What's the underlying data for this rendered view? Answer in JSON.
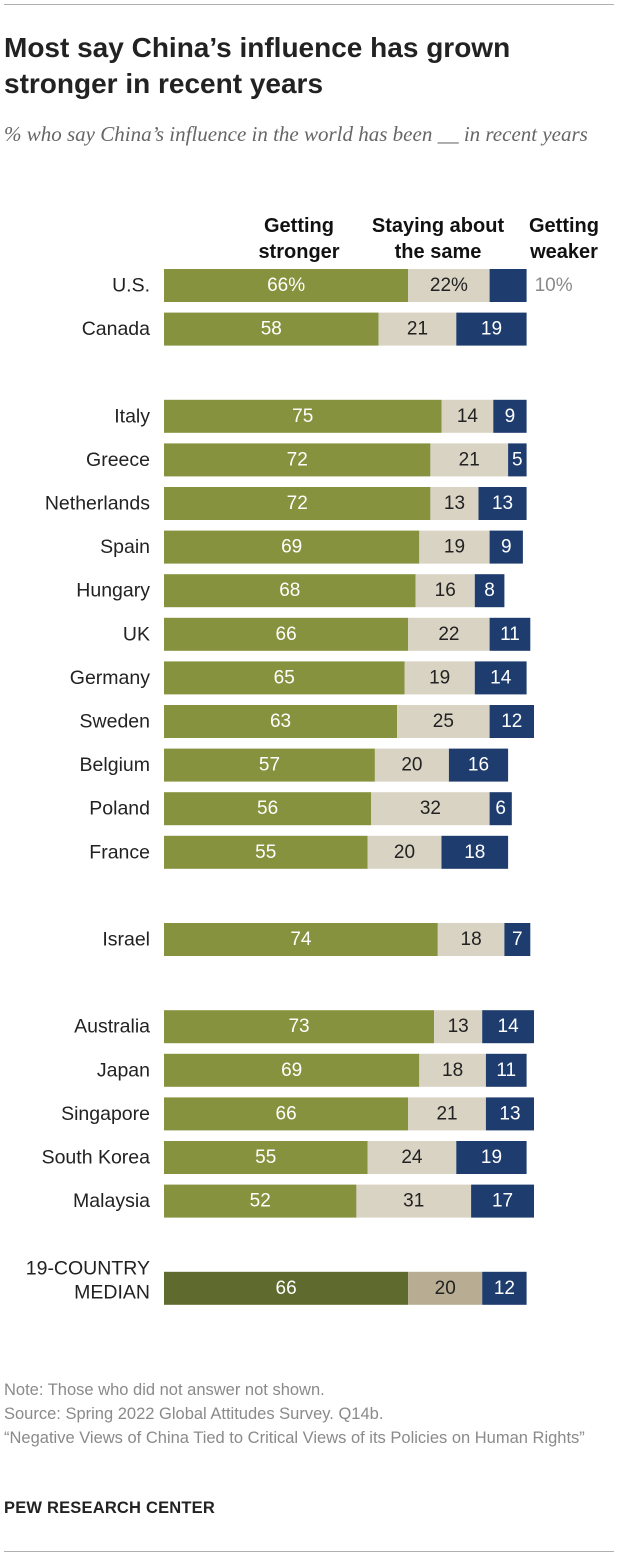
{
  "title": "Most say China’s influence has grown stronger in recent years",
  "subtitle": "% who say China’s influence in the world has been __ in recent years",
  "columns": {
    "stronger": "Getting\nstronger",
    "same": "Staying about\nthe same",
    "weaker": "Getting\nweaker"
  },
  "colors": {
    "stronger": "#86923e",
    "same": "#d9d3c4",
    "weaker": "#1e3c6e",
    "median_stronger": "#5e6a2e",
    "median_same": "#b8ad92",
    "median_weaker": "#1e3c6e"
  },
  "chart_data": {
    "type": "bar",
    "orientation": "horizontal",
    "stacked": true,
    "series": [
      {
        "name": "Getting stronger",
        "values": [
          66,
          58,
          75,
          72,
          72,
          69,
          68,
          66,
          65,
          63,
          57,
          56,
          55,
          74,
          73,
          69,
          66,
          55,
          52,
          66
        ]
      },
      {
        "name": "Staying about the same",
        "values": [
          22,
          21,
          14,
          21,
          13,
          19,
          16,
          22,
          19,
          25,
          20,
          32,
          20,
          18,
          13,
          18,
          21,
          24,
          31,
          20
        ]
      },
      {
        "name": "Getting weaker",
        "values": [
          10,
          19,
          9,
          5,
          13,
          9,
          8,
          11,
          14,
          12,
          16,
          6,
          18,
          7,
          14,
          11,
          13,
          19,
          17,
          12
        ]
      }
    ],
    "rows": [
      {
        "label": "U.S.",
        "stronger": 66,
        "same": 22,
        "weaker": 10,
        "stronger_text": "66%",
        "same_text": "22%",
        "weaker_text": "10%",
        "weaker_outside": true
      },
      {
        "label": "Canada",
        "stronger": 58,
        "same": 21,
        "weaker": 19,
        "stronger_text": "58",
        "same_text": "21",
        "weaker_text": "19"
      },
      {
        "label": "Italy",
        "stronger": 75,
        "same": 14,
        "weaker": 9,
        "stronger_text": "75",
        "same_text": "14",
        "weaker_text": "9"
      },
      {
        "label": "Greece",
        "stronger": 72,
        "same": 21,
        "weaker": 5,
        "stronger_text": "72",
        "same_text": "21",
        "weaker_text": "5"
      },
      {
        "label": "Netherlands",
        "stronger": 72,
        "same": 13,
        "weaker": 13,
        "stronger_text": "72",
        "same_text": "13",
        "weaker_text": "13"
      },
      {
        "label": "Spain",
        "stronger": 69,
        "same": 19,
        "weaker": 9,
        "stronger_text": "69",
        "same_text": "19",
        "weaker_text": "9"
      },
      {
        "label": "Hungary",
        "stronger": 68,
        "same": 16,
        "weaker": 8,
        "stronger_text": "68",
        "same_text": "16",
        "weaker_text": "8"
      },
      {
        "label": "UK",
        "stronger": 66,
        "same": 22,
        "weaker": 11,
        "stronger_text": "66",
        "same_text": "22",
        "weaker_text": "11"
      },
      {
        "label": "Germany",
        "stronger": 65,
        "same": 19,
        "weaker": 14,
        "stronger_text": "65",
        "same_text": "19",
        "weaker_text": "14"
      },
      {
        "label": "Sweden",
        "stronger": 63,
        "same": 25,
        "weaker": 12,
        "stronger_text": "63",
        "same_text": "25",
        "weaker_text": "12"
      },
      {
        "label": "Belgium",
        "stronger": 57,
        "same": 20,
        "weaker": 16,
        "stronger_text": "57",
        "same_text": "20",
        "weaker_text": "16"
      },
      {
        "label": "Poland",
        "stronger": 56,
        "same": 32,
        "weaker": 6,
        "stronger_text": "56",
        "same_text": "32",
        "weaker_text": "6"
      },
      {
        "label": "France",
        "stronger": 55,
        "same": 20,
        "weaker": 18,
        "stronger_text": "55",
        "same_text": "20",
        "weaker_text": "18"
      },
      {
        "label": "Israel",
        "stronger": 74,
        "same": 18,
        "weaker": 7,
        "stronger_text": "74",
        "same_text": "18",
        "weaker_text": "7"
      },
      {
        "label": "Australia",
        "stronger": 73,
        "same": 13,
        "weaker": 14,
        "stronger_text": "73",
        "same_text": "13",
        "weaker_text": "14"
      },
      {
        "label": "Japan",
        "stronger": 69,
        "same": 18,
        "weaker": 11,
        "stronger_text": "69",
        "same_text": "18",
        "weaker_text": "11"
      },
      {
        "label": "Singapore",
        "stronger": 66,
        "same": 21,
        "weaker": 13,
        "stronger_text": "66",
        "same_text": "21",
        "weaker_text": "13"
      },
      {
        "label": "South Korea",
        "stronger": 55,
        "same": 24,
        "weaker": 19,
        "stronger_text": "55",
        "same_text": "24",
        "weaker_text": "19"
      },
      {
        "label": "Malaysia",
        "stronger": 52,
        "same": 31,
        "weaker": 17,
        "stronger_text": "52",
        "same_text": "31",
        "weaker_text": "17"
      },
      {
        "label": "19-COUNTRY\nMEDIAN",
        "stronger": 66,
        "same": 20,
        "weaker": 12,
        "stronger_text": "66",
        "same_text": "20",
        "weaker_text": "12",
        "median": true
      }
    ],
    "groups": [
      [
        0,
        1
      ],
      [
        2,
        3,
        4,
        5,
        6,
        7,
        8,
        9,
        10,
        11,
        12
      ],
      [
        13
      ],
      [
        14,
        15,
        16,
        17,
        18
      ],
      [
        19
      ]
    ],
    "xlim": [
      0,
      100
    ],
    "grid": false,
    "legend": "top"
  },
  "notes": {
    "note": "Note: Those who did not answer not shown.",
    "source": "Source: Spring 2022 Global Attitudes Survey. Q14b.",
    "report": "“Negative Views of China Tied to Critical Views of its Policies on Human Rights”"
  },
  "brand": "PEW RESEARCH CENTER"
}
